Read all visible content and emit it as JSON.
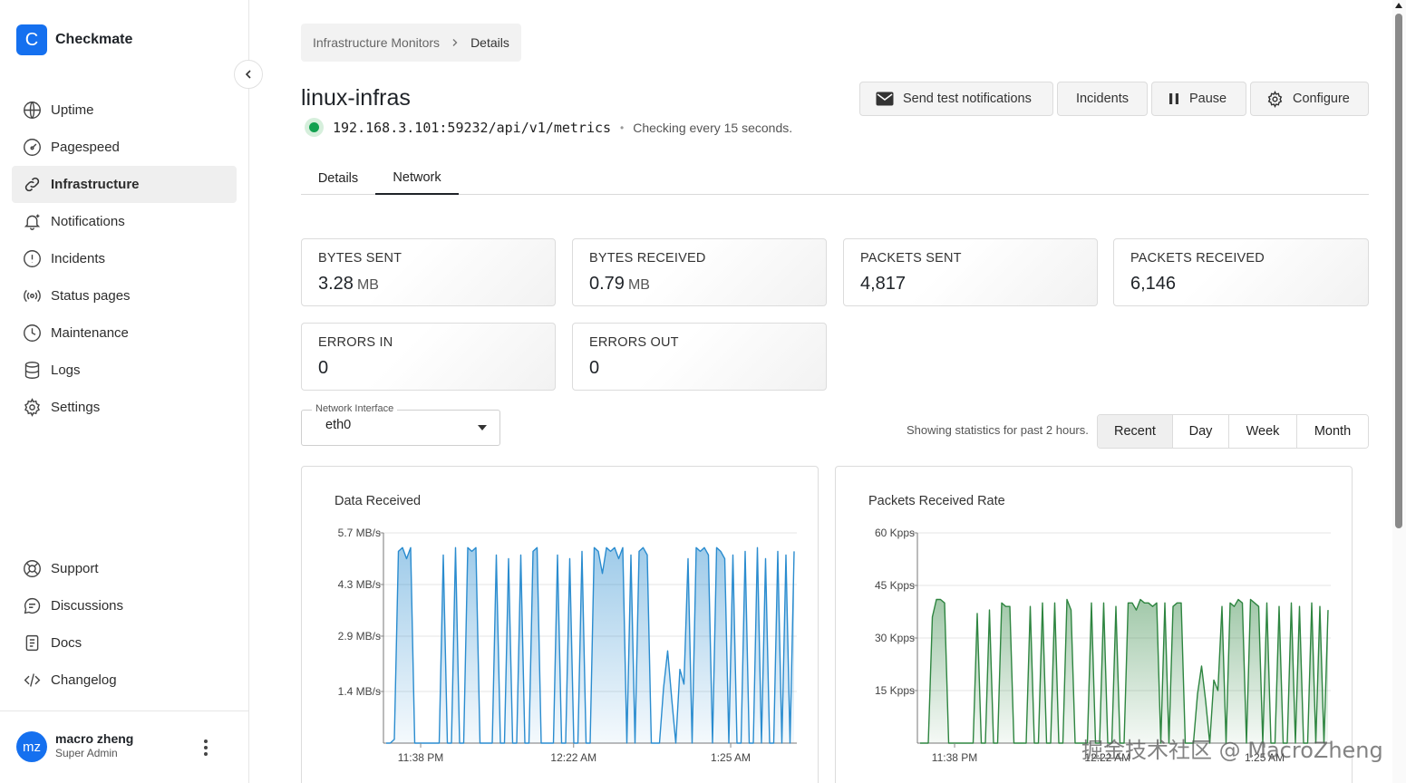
{
  "brand": {
    "logo_letter": "C",
    "name": "Checkmate"
  },
  "sidebar": {
    "items": [
      {
        "label": "Uptime",
        "icon": "globe-icon"
      },
      {
        "label": "Pagespeed",
        "icon": "gauge-icon"
      },
      {
        "label": "Infrastructure",
        "icon": "link-icon",
        "active": true
      },
      {
        "label": "Notifications",
        "icon": "bell-icon"
      },
      {
        "label": "Incidents",
        "icon": "alert-circle-icon"
      },
      {
        "label": "Status pages",
        "icon": "broadcast-icon"
      },
      {
        "label": "Maintenance",
        "icon": "clock-icon"
      },
      {
        "label": "Logs",
        "icon": "database-icon"
      },
      {
        "label": "Settings",
        "icon": "gear-icon"
      }
    ],
    "bottom_items": [
      {
        "label": "Support",
        "icon": "lifebuoy-icon"
      },
      {
        "label": "Discussions",
        "icon": "chat-icon"
      },
      {
        "label": "Docs",
        "icon": "document-icon"
      },
      {
        "label": "Changelog",
        "icon": "code-icon"
      }
    ]
  },
  "user": {
    "initials": "mz",
    "name": "macro zheng",
    "role": "Super Admin"
  },
  "breadcrumb": {
    "parent": "Infrastructure Monitors",
    "current": "Details"
  },
  "monitor": {
    "name": "linux-infras",
    "url": "192.168.3.101:59232/api/v1/metrics",
    "separator": "•",
    "check_text": "Checking every 15 seconds.",
    "status_color": "#12a150"
  },
  "actions": {
    "send_test": "Send test notifications",
    "incidents": "Incidents",
    "pause": "Pause",
    "configure": "Configure"
  },
  "tabs": [
    {
      "label": "Details"
    },
    {
      "label": "Network",
      "active": true
    }
  ],
  "stats": [
    {
      "label": "BYTES SENT",
      "value": "3.28",
      "unit": "MB"
    },
    {
      "label": "BYTES RECEIVED",
      "value": "0.79",
      "unit": "MB"
    },
    {
      "label": "PACKETS SENT",
      "value": "4,817",
      "unit": ""
    },
    {
      "label": "PACKETS RECEIVED",
      "value": "6,146",
      "unit": ""
    },
    {
      "label": "ERRORS IN",
      "value": "0",
      "unit": ""
    },
    {
      "label": "ERRORS OUT",
      "value": "0",
      "unit": ""
    }
  ],
  "interface_select": {
    "label": "Network Interface",
    "value": "eth0"
  },
  "stats_note": "Showing statistics for past 2 hours.",
  "range_buttons": [
    {
      "label": "Recent",
      "active": true
    },
    {
      "label": "Day"
    },
    {
      "label": "Week"
    },
    {
      "label": "Month"
    }
  ],
  "chart_data": [
    {
      "type": "area",
      "title": "Data Received",
      "y_unit": "MB/s",
      "yticks": [
        "5.7 MB/s",
        "4.3 MB/s",
        "2.9 MB/s",
        "1.4 MB/s"
      ],
      "ytick_values": [
        5.7,
        4.3,
        2.9,
        1.4
      ],
      "ylim": [
        0,
        5.7
      ],
      "xticks": [
        "11:38 PM",
        "12:22 AM",
        "1:25 AM"
      ],
      "color": "#2a8ccf",
      "grid": true,
      "series": [
        {
          "values": [
            0,
            0,
            0.1,
            5.2,
            5.3,
            5.0,
            5.3,
            0,
            0,
            0,
            0,
            0,
            0,
            0,
            5.1,
            0,
            0,
            5.3,
            0,
            0,
            5.3,
            5.2,
            5.3,
            0,
            0,
            0,
            0,
            5.1,
            0,
            0,
            5.0,
            0,
            0,
            5.1,
            0,
            0,
            5.2,
            5.3,
            0,
            0,
            0,
            0,
            5.1,
            0,
            0,
            5.0,
            0,
            0,
            5.2,
            0,
            0,
            5.3,
            5.2,
            4.6,
            5.3,
            5.2,
            5.3,
            5.0,
            5.3,
            0,
            5.1,
            0,
            5.2,
            5.3,
            5.1,
            0,
            0,
            0,
            1.5,
            2.5,
            1.2,
            0,
            2.0,
            1.6,
            5.0,
            0,
            5.3,
            5.2,
            5.3,
            5.1,
            0,
            5.3,
            5.2,
            5.0,
            0,
            5.1,
            0,
            0,
            5.2,
            0,
            0,
            5.3,
            0,
            5.0,
            0,
            0,
            5.2,
            0,
            5.1,
            0,
            5.2
          ]
        }
      ]
    },
    {
      "type": "area",
      "title": "Packets Received Rate",
      "y_unit": "Kpps",
      "yticks": [
        "60 Kpps",
        "45 Kpps",
        "30 Kpps",
        "15 Kpps"
      ],
      "ytick_values": [
        60,
        45,
        30,
        15
      ],
      "ylim": [
        0,
        60
      ],
      "xticks": [
        "11:38 PM",
        "12:22 AM",
        "1:25 AM"
      ],
      "color": "#2e8540",
      "grid": true,
      "series": [
        {
          "values": [
            0,
            0,
            0,
            36,
            41,
            41,
            40,
            0,
            0,
            0,
            0,
            0,
            0,
            0,
            37,
            0,
            0,
            38,
            0,
            0,
            40,
            39,
            39,
            0,
            0,
            0,
            0,
            39,
            0,
            0,
            40,
            0,
            0,
            40,
            0,
            0,
            41,
            38,
            0,
            0,
            0,
            0,
            40,
            0,
            0,
            40,
            0,
            0,
            39,
            0,
            0,
            40,
            40,
            38,
            41,
            40,
            40,
            39,
            40,
            0,
            40,
            0,
            39,
            40,
            40,
            0,
            0,
            0,
            14,
            22,
            12,
            0,
            18,
            15,
            39,
            0,
            40,
            39,
            41,
            40,
            0,
            41,
            40,
            39,
            0,
            40,
            0,
            0,
            39,
            0,
            0,
            40,
            0,
            39,
            0,
            0,
            40,
            0,
            39,
            0,
            38
          ]
        }
      ]
    }
  ],
  "watermark": "掘金技术社区 @ MacroZheng"
}
